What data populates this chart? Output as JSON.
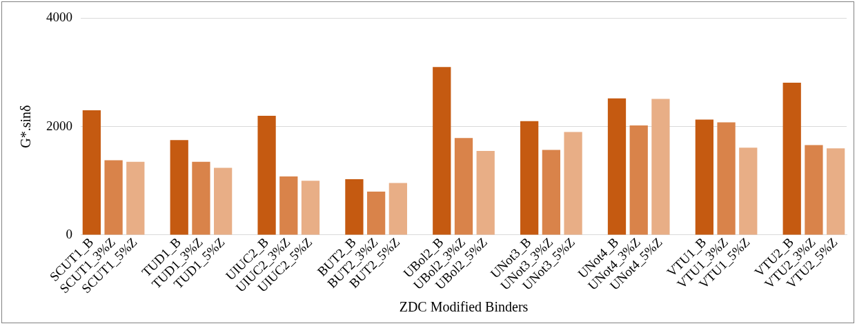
{
  "chart_data": {
    "type": "bar",
    "xlabel": "ZDC Modified Binders",
    "ylabel": "G*.sinδ",
    "categories": [
      "SCUT1_B",
      "SCUT1_3%Z",
      "SCUT1_5%Z",
      null,
      "TUD1_B",
      "TUD1_3%Z",
      "TUD1_5%Z",
      null,
      "UIUC2_B",
      "UIUC2_3%Z",
      "UIUC2_5%Z",
      null,
      "BUT2_B",
      "BUT2_3%Z",
      "BUT2_5%Z",
      null,
      "UBol2_B",
      "UBol2_3%Z",
      "UBol2_5%Z",
      null,
      "UNot3_B",
      "UNot3_3%Z",
      "UNot3_5%Z",
      null,
      "UNot4_B",
      "UNot4_3%Z",
      "UNot4_5%Z",
      null,
      "VTU1_B",
      "VTU1_3%Z",
      "VTU1_5%Z",
      null,
      "VTU2_B",
      "VTU2_3%Z",
      "VTU2_5%Z"
    ],
    "values": [
      2300,
      1380,
      1350,
      null,
      1750,
      1350,
      1240,
      null,
      2200,
      1080,
      1000,
      null,
      1030,
      800,
      960,
      null,
      3100,
      1790,
      1550,
      null,
      2100,
      1570,
      1900,
      null,
      2520,
      2020,
      2510,
      null,
      2130,
      2080,
      1610,
      null,
      2810,
      1660,
      1600
    ],
    "colors": [
      "#c55a11",
      "#d9834a",
      "#e8ae86",
      null,
      "#c55a11",
      "#d9834a",
      "#e8ae86",
      null,
      "#c55a11",
      "#d9834a",
      "#e8ae86",
      null,
      "#c55a11",
      "#d9834a",
      "#e8ae86",
      null,
      "#c55a11",
      "#d9834a",
      "#e8ae86",
      null,
      "#c55a11",
      "#d9834a",
      "#e8ae86",
      null,
      "#c55a11",
      "#d9834a",
      "#e8ae86",
      null,
      "#c55a11",
      "#d9834a",
      "#e8ae86",
      null,
      "#c55a11",
      "#d9834a",
      "#e8ae86"
    ],
    "ylim": [
      0,
      4000
    ],
    "yticks": [
      0,
      2000,
      4000
    ],
    "grid": "y",
    "legend": false
  }
}
